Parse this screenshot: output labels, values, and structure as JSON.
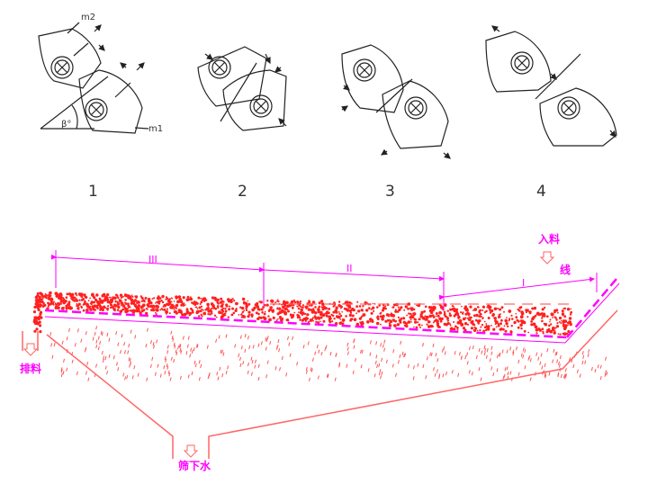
{
  "arrangements": [
    {
      "number": "1",
      "labels": {
        "m2": "m2",
        "m1": "m1",
        "angle": "β°"
      }
    },
    {
      "number": "2"
    },
    {
      "number": "3"
    },
    {
      "number": "4"
    }
  ],
  "screen": {
    "zone_labels": [
      "III",
      "II",
      "I"
    ],
    "feed_label": "入料",
    "line_label": "线",
    "discharge_label": "排料",
    "underflow_label": "筛下水"
  },
  "colors": {
    "material": "#ff2020",
    "screen_line": "#ff00ff",
    "tank": "#ff6060",
    "drawing": "#222222"
  }
}
